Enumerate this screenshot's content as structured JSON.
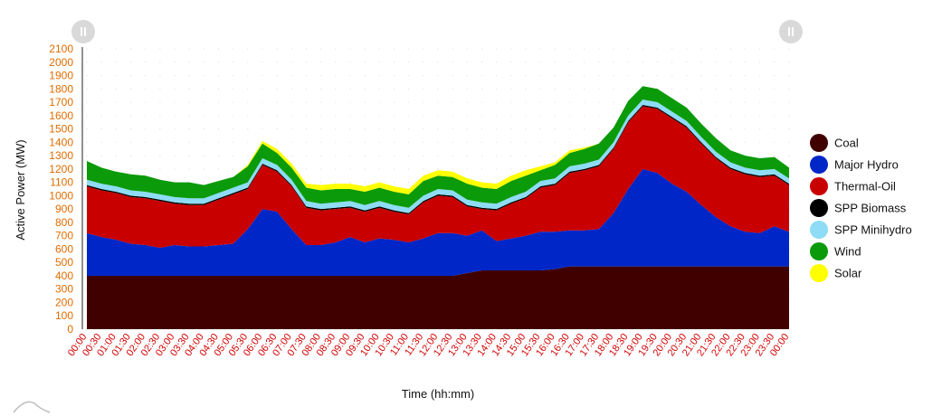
{
  "chart_data": {
    "type": "area",
    "stacked": true,
    "xlabel": "Time (hh:mm)",
    "ylabel": "Active Power (MW)",
    "ylim": [
      0,
      2100
    ],
    "yticks": [
      0,
      100,
      200,
      300,
      400,
      500,
      600,
      700,
      800,
      900,
      1000,
      1100,
      1200,
      1300,
      1400,
      1500,
      1600,
      1700,
      1800,
      1900,
      2000,
      2100
    ],
    "categories": [
      "00:00",
      "00:30",
      "01:00",
      "01:30",
      "02:00",
      "02:30",
      "03:00",
      "03:30",
      "04:00",
      "04:30",
      "05:00",
      "05:30",
      "06:00",
      "06:30",
      "07:00",
      "07:30",
      "08:00",
      "08:30",
      "09:00",
      "09:30",
      "10:00",
      "10:30",
      "11:00",
      "11:30",
      "12:00",
      "12:30",
      "13:00",
      "13:30",
      "14:00",
      "14:30",
      "15:00",
      "15:30",
      "16:00",
      "16:30",
      "17:00",
      "17:30",
      "18:00",
      "18:30",
      "19:00",
      "19:30",
      "20:00",
      "20:30",
      "21:00",
      "21:30",
      "22:00",
      "22:30",
      "23:00",
      "23:30",
      "00:00"
    ],
    "series": [
      {
        "name": "Coal",
        "color": "#400000",
        "values": [
          400,
          400,
          400,
          400,
          400,
          400,
          400,
          400,
          400,
          400,
          400,
          400,
          400,
          400,
          400,
          400,
          400,
          400,
          400,
          400,
          400,
          400,
          400,
          400,
          400,
          400,
          420,
          440,
          440,
          440,
          440,
          440,
          450,
          470,
          470,
          470,
          470,
          470,
          470,
          470,
          470,
          470,
          470,
          470,
          470,
          470,
          470,
          470,
          470
        ]
      },
      {
        "name": "Major Hydro",
        "color": "#0026c8",
        "values": [
          320,
          290,
          270,
          240,
          230,
          210,
          230,
          220,
          220,
          230,
          240,
          350,
          500,
          480,
          350,
          230,
          230,
          250,
          290,
          250,
          280,
          270,
          250,
          280,
          320,
          320,
          280,
          300,
          220,
          240,
          260,
          290,
          280,
          270,
          270,
          280,
          400,
          580,
          730,
          700,
          620,
          560,
          460,
          370,
          300,
          260,
          250,
          300,
          260
        ]
      },
      {
        "name": "Thermal-Oil",
        "color": "#c80000",
        "values": [
          350,
          350,
          350,
          350,
          350,
          350,
          310,
          310,
          310,
          340,
          370,
          300,
          330,
          300,
          320,
          280,
          260,
          250,
          220,
          230,
          230,
          210,
          210,
          270,
          280,
          270,
          220,
          160,
          230,
          260,
          280,
          330,
          350,
          430,
          450,
          470,
          480,
          500,
          470,
          480,
          490,
          480,
          460,
          440,
          430,
          430,
          420,
          380,
          350
        ]
      },
      {
        "name": "SPP Biomass",
        "color": "#000000",
        "values": [
          10,
          10,
          10,
          10,
          10,
          10,
          10,
          10,
          10,
          10,
          10,
          10,
          10,
          10,
          10,
          10,
          10,
          10,
          10,
          10,
          10,
          10,
          10,
          10,
          10,
          10,
          10,
          10,
          10,
          10,
          10,
          10,
          10,
          10,
          10,
          10,
          10,
          10,
          10,
          10,
          10,
          10,
          10,
          10,
          10,
          10,
          10,
          10,
          10
        ]
      },
      {
        "name": "SPP Minihydro",
        "color": "#8edcf5",
        "values": [
          40,
          40,
          40,
          40,
          40,
          40,
          40,
          40,
          40,
          40,
          40,
          40,
          40,
          40,
          40,
          40,
          40,
          40,
          40,
          40,
          40,
          40,
          40,
          40,
          40,
          40,
          40,
          40,
          40,
          40,
          40,
          40,
          40,
          40,
          40,
          40,
          40,
          40,
          40,
          40,
          40,
          40,
          40,
          40,
          40,
          40,
          40,
          40,
          40
        ]
      },
      {
        "name": "Wind",
        "color": "#0a9a0a",
        "values": [
          140,
          120,
          110,
          120,
          120,
          110,
          110,
          120,
          100,
          90,
          80,
          120,
          110,
          90,
          90,
          100,
          100,
          100,
          90,
          100,
          100,
          100,
          100,
          110,
          100,
          100,
          120,
          110,
          110,
          120,
          120,
          80,
          100,
          100,
          110,
          120,
          110,
          110,
          100,
          100,
          100,
          100,
          100,
          100,
          90,
          90,
          90,
          90,
          80
        ]
      },
      {
        "name": "Solar",
        "color": "#ffff00",
        "values": [
          0,
          0,
          0,
          0,
          0,
          0,
          0,
          0,
          0,
          0,
          0,
          10,
          20,
          30,
          30,
          30,
          40,
          40,
          40,
          40,
          40,
          40,
          40,
          40,
          40,
          40,
          40,
          40,
          40,
          40,
          40,
          30,
          20,
          20,
          10,
          0,
          0,
          0,
          0,
          0,
          0,
          0,
          0,
          0,
          0,
          0,
          0,
          0,
          0
        ]
      }
    ],
    "legend": "right",
    "grid": true
  }
}
